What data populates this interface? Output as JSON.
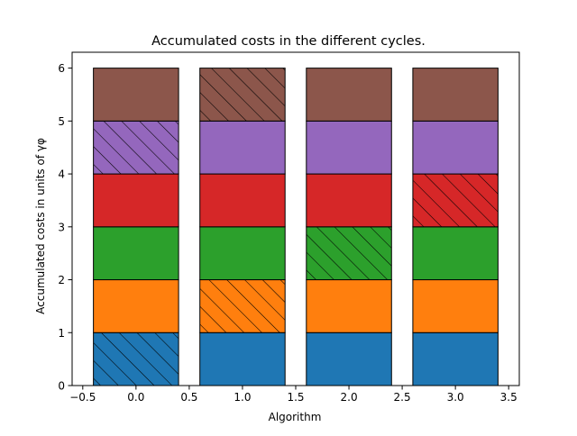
{
  "chart_data": {
    "type": "bar",
    "stacked": true,
    "title": "Accumulated costs in the different cycles.",
    "xlabel": "Algorithm",
    "ylabel": "Accumulated costs in units of γφ",
    "x": [
      0,
      1,
      2,
      3
    ],
    "bar_width": 0.8,
    "xlim": [
      -0.6,
      3.6
    ],
    "ylim": [
      0,
      6.3
    ],
    "xticks": [
      -0.5,
      0.0,
      0.5,
      1.0,
      1.5,
      2.0,
      2.5,
      3.0,
      3.5
    ],
    "xtick_labels": [
      "−0.5",
      "0.0",
      "0.5",
      "1.0",
      "1.5",
      "2.0",
      "2.5",
      "3.0",
      "3.5"
    ],
    "yticks": [
      0,
      1,
      2,
      3,
      4,
      5,
      6
    ],
    "ytick_labels": [
      "0",
      "1",
      "2",
      "3",
      "4",
      "5",
      "6"
    ],
    "grid": false,
    "legend": "none",
    "series": [
      {
        "color": "#1f77b4",
        "values": [
          1,
          1,
          1,
          1
        ],
        "hatched": [
          true,
          false,
          false,
          false
        ]
      },
      {
        "color": "#ff7f0e",
        "values": [
          1,
          1,
          1,
          1
        ],
        "hatched": [
          false,
          true,
          false,
          false
        ]
      },
      {
        "color": "#2ca02c",
        "values": [
          1,
          1,
          1,
          1
        ],
        "hatched": [
          false,
          false,
          true,
          false
        ]
      },
      {
        "color": "#d62728",
        "values": [
          1,
          1,
          1,
          1
        ],
        "hatched": [
          false,
          false,
          false,
          true
        ]
      },
      {
        "color": "#9467bd",
        "values": [
          1,
          1,
          1,
          1
        ],
        "hatched": [
          true,
          false,
          false,
          false
        ]
      },
      {
        "color": "#8c564b",
        "values": [
          1,
          1,
          1,
          1
        ],
        "hatched": [
          false,
          true,
          false,
          false
        ]
      }
    ]
  }
}
